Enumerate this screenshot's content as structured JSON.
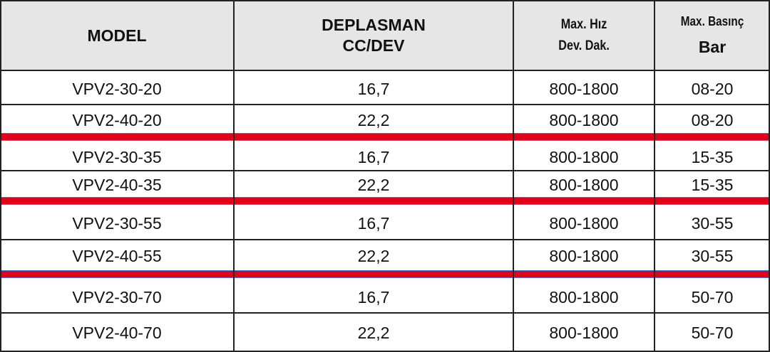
{
  "table": {
    "header": [
      [
        "MODEL"
      ],
      [
        "DEPLASMAN",
        "CC/DEV"
      ],
      [
        "Max. Hız",
        "Dev. Dak."
      ],
      [
        "Max. Basınç",
        "Bar"
      ]
    ],
    "rows": [
      [
        "VPV2-30-20",
        "16,7",
        "800-1800",
        "08-20"
      ],
      [
        "VPV2-40-20",
        "22,2",
        "800-1800",
        "08-20"
      ],
      [
        "VPV2-30-35",
        "16,7",
        "800-1800",
        "15-35"
      ],
      [
        "VPV2-40-35",
        "22,2",
        "800-1800",
        "15-35"
      ],
      [
        "VPV2-30-55",
        "16,7",
        "800-1800",
        "30-55"
      ],
      [
        "VPV2-40-55",
        "22,2",
        "800-1800",
        "30-55"
      ],
      [
        "VPV2-30-70",
        "16,7",
        "800-1800",
        "50-70"
      ],
      [
        "VPV2-40-70",
        "22,2",
        "800-1800",
        "50-70"
      ]
    ]
  }
}
